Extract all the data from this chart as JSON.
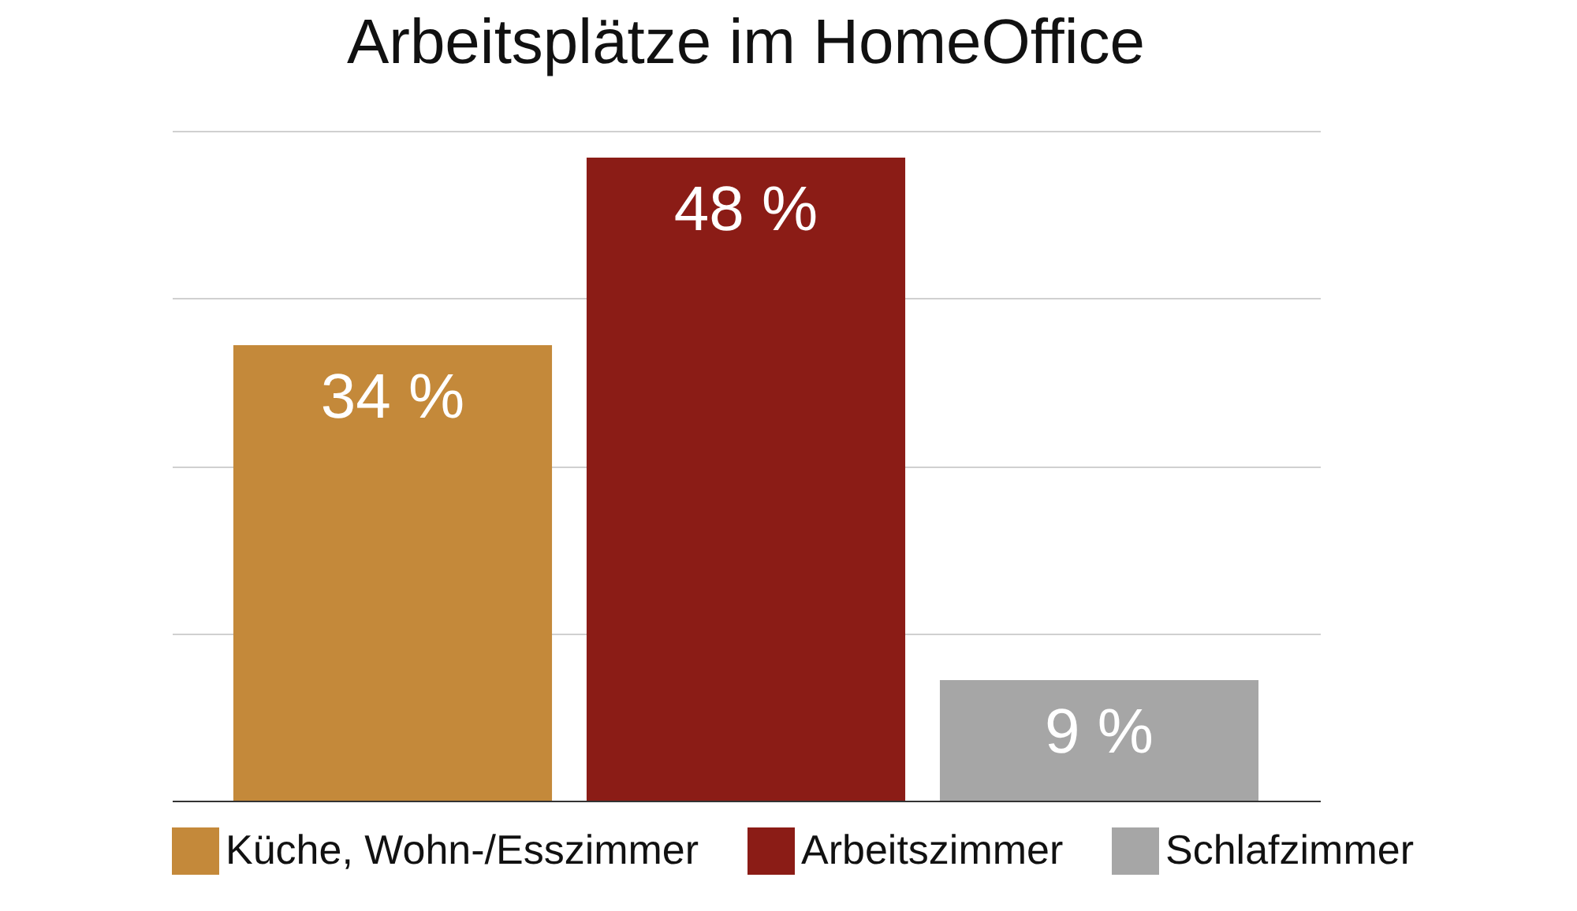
{
  "chart_data": {
    "type": "bar",
    "title": "Arbeitsplätze im HomeOffice",
    "categories": [
      null,
      null,
      null
    ],
    "series": [
      {
        "name": "Küche, Wohn-/Esszimmer",
        "color": "#c4893a",
        "values": [
          34,
          null,
          null
        ],
        "value_labels": [
          "34 %",
          null,
          null
        ]
      },
      {
        "name": "Arbeitszimmer",
        "color": "#8b1c16",
        "values": [
          null,
          48,
          null
        ],
        "value_labels": [
          null,
          "48 %",
          null
        ]
      },
      {
        "name": "Schlafzimmer",
        "color": "#a6a6a6",
        "values": [
          null,
          null,
          9
        ],
        "value_labels": [
          null,
          null,
          "9 %"
        ]
      }
    ],
    "ylim": [
      0,
      50
    ],
    "yticks": [
      {
        "value": 0,
        "label": null
      },
      {
        "value": 12.5,
        "label": null
      },
      {
        "value": 25,
        "label": null
      },
      {
        "value": 37.5,
        "label": null
      },
      {
        "value": 50,
        "label": null
      }
    ],
    "grid": "y",
    "legend": "bottom",
    "stacked": true
  }
}
